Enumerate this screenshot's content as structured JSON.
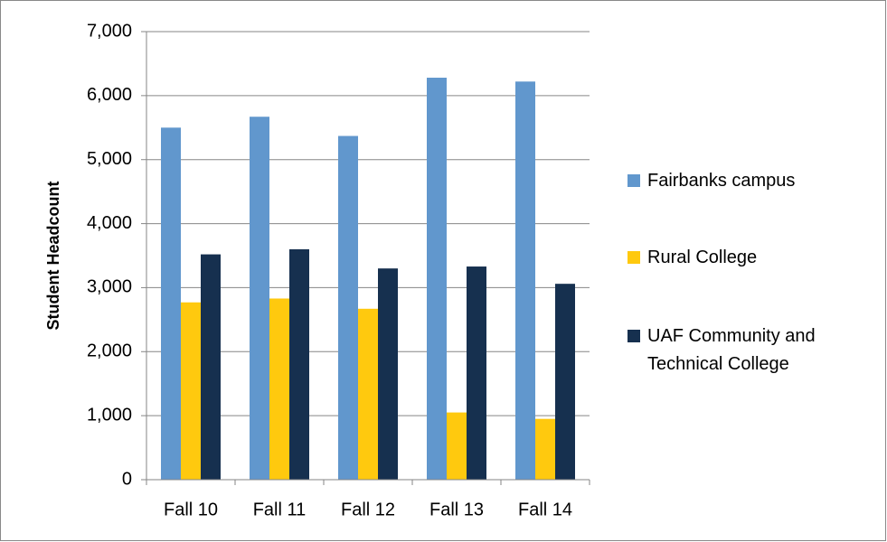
{
  "chart_data": {
    "type": "bar",
    "y_label": "Student Headcount",
    "categories": [
      "Fall 10",
      "Fall 11",
      "Fall 12",
      "Fall 13",
      "Fall 14"
    ],
    "series": [
      {
        "name": "Fairbanks campus",
        "color": "#6197cd",
        "values": [
          5500,
          5670,
          5370,
          6280,
          6220
        ]
      },
      {
        "name": "Rural College",
        "color": "#ffc90e",
        "values": [
          2770,
          2830,
          2670,
          1050,
          950
        ]
      },
      {
        "name": "UAF Community and Technical College",
        "color": "#16304f",
        "values": [
          3520,
          3600,
          3300,
          3330,
          3060
        ]
      }
    ],
    "ylim": [
      0,
      7000
    ],
    "yticks": [
      0,
      {
        "value": 1000,
        "label": "1,000"
      },
      {
        "value": 2000,
        "label": "2,000"
      },
      {
        "value": 3000,
        "label": "3,000"
      },
      {
        "value": 4000,
        "label": "4,000"
      },
      {
        "value": 5000,
        "label": "5,000"
      },
      {
        "value": 6000,
        "label": "6,000"
      },
      {
        "value": 7000,
        "label": "7,000"
      }
    ],
    "grid": true,
    "legend": "right"
  }
}
